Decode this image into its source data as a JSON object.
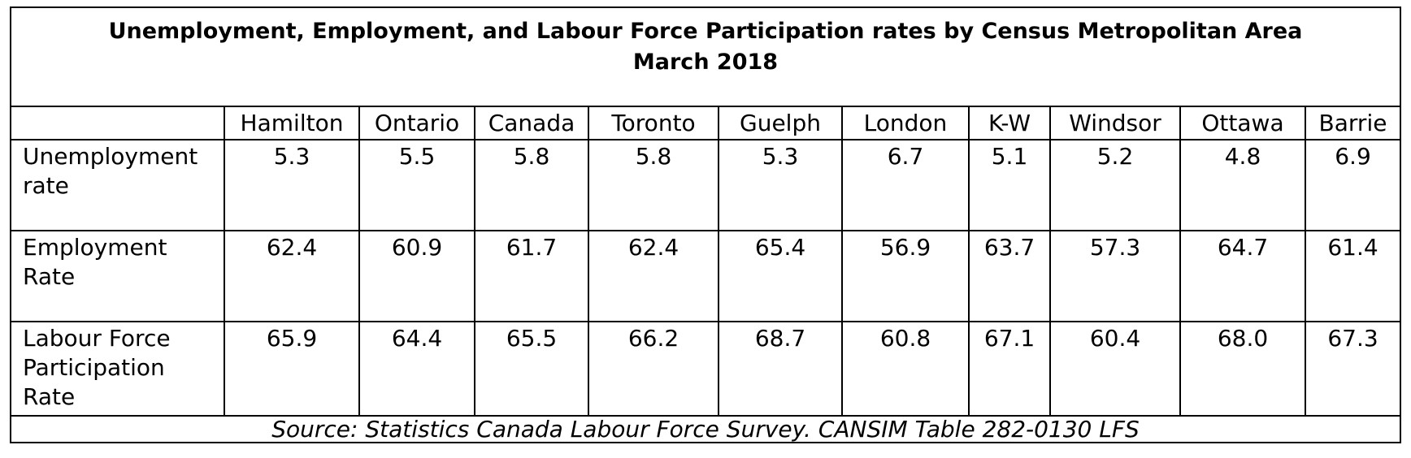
{
  "chart_data": {
    "type": "table",
    "title": "Unemployment, Employment, and Labour Force Participation rates by Census Metropolitan Area",
    "subtitle": "March 2018",
    "columns": [
      "Hamilton",
      "Ontario",
      "Canada",
      "Toronto",
      "Guelph",
      "London",
      "K-W",
      "Windsor",
      "Ottawa",
      "Barrie"
    ],
    "rows": [
      {
        "label_lines": [
          "Unemployment",
          "rate"
        ],
        "values": [
          "5.3",
          "5.5",
          "5.8",
          "5.8",
          "5.3",
          "6.7",
          "5.1",
          "5.2",
          "4.8",
          "6.9"
        ]
      },
      {
        "label_lines": [
          "Employment",
          "Rate"
        ],
        "values": [
          "62.4",
          "60.9",
          "61.7",
          "62.4",
          "65.4",
          "56.9",
          "63.7",
          "57.3",
          "64.7",
          "61.4"
        ]
      },
      {
        "label_lines": [
          "Labour Force",
          "Participation",
          "Rate"
        ],
        "values": [
          "65.9",
          "64.4",
          "65.5",
          "66.2",
          "68.7",
          "60.8",
          "67.1",
          "60.4",
          "68.0",
          "67.3"
        ]
      }
    ],
    "source": "Source:  Statistics Canada Labour Force Survey.  CANSIM Table 282-0130 LFS"
  }
}
